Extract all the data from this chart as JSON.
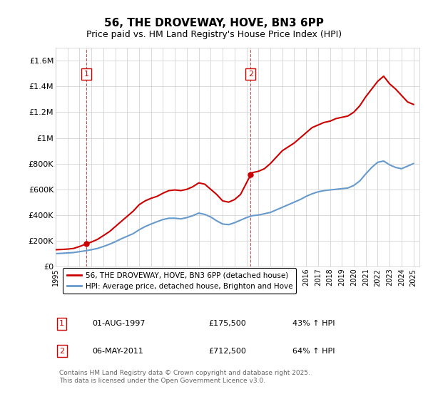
{
  "title": "56, THE DROVEWAY, HOVE, BN3 6PP",
  "subtitle": "Price paid vs. HM Land Registry's House Price Index (HPI)",
  "ylabel_ticks": [
    "£0",
    "£200K",
    "£400K",
    "£600K",
    "£800K",
    "£1M",
    "£1.2M",
    "£1.4M",
    "£1.6M"
  ],
  "ytick_values": [
    0,
    200000,
    400000,
    600000,
    800000,
    1000000,
    1200000,
    1400000,
    1600000
  ],
  "ylim": [
    0,
    1700000
  ],
  "xlim_start": 1995.0,
  "xlim_end": 2025.5,
  "marker1_x": 1997.58,
  "marker1_y": 175500,
  "marker2_x": 2011.35,
  "marker2_y": 712500,
  "marker1_label": "1",
  "marker2_label": "2",
  "legend_line1": "56, THE DROVEWAY, HOVE, BN3 6PP (detached house)",
  "legend_line2": "HPI: Average price, detached house, Brighton and Hove",
  "note1_label": "1",
  "note1_date": "01-AUG-1997",
  "note1_price": "£175,500",
  "note1_hpi": "43% ↑ HPI",
  "note2_label": "2",
  "note2_date": "06-MAY-2011",
  "note2_price": "£712,500",
  "note2_hpi": "64% ↑ HPI",
  "footer": "Contains HM Land Registry data © Crown copyright and database right 2025.\nThis data is licensed under the Open Government Licence v3.0.",
  "red_color": "#cc0000",
  "blue_color": "#6699cc",
  "dashed_red": "#cc0000",
  "grid_color": "#cccccc",
  "background_color": "#ffffff",
  "red_line_data_x": [
    1995.0,
    1995.5,
    1996.0,
    1996.5,
    1997.0,
    1997.58,
    1998.0,
    1998.5,
    1999.0,
    1999.5,
    2000.0,
    2000.5,
    2001.0,
    2001.5,
    2002.0,
    2002.5,
    2003.0,
    2003.5,
    2004.0,
    2004.5,
    2005.0,
    2005.5,
    2006.0,
    2006.5,
    2007.0,
    2007.5,
    2008.0,
    2008.5,
    2009.0,
    2009.5,
    2010.0,
    2010.5,
    2011.35,
    2011.5,
    2012.0,
    2012.5,
    2013.0,
    2013.5,
    2014.0,
    2014.5,
    2015.0,
    2015.5,
    2016.0,
    2016.5,
    2017.0,
    2017.5,
    2018.0,
    2018.5,
    2019.0,
    2019.5,
    2020.0,
    2020.5,
    2021.0,
    2021.5,
    2022.0,
    2022.5,
    2023.0,
    2023.5,
    2024.0,
    2024.5,
    2025.0
  ],
  "red_line_data_y": [
    130000,
    132000,
    135000,
    140000,
    155000,
    175500,
    190000,
    210000,
    240000,
    270000,
    310000,
    350000,
    390000,
    430000,
    480000,
    510000,
    530000,
    545000,
    570000,
    590000,
    595000,
    590000,
    600000,
    620000,
    650000,
    640000,
    600000,
    560000,
    510000,
    500000,
    520000,
    560000,
    712500,
    730000,
    740000,
    760000,
    800000,
    850000,
    900000,
    930000,
    960000,
    1000000,
    1040000,
    1080000,
    1100000,
    1120000,
    1130000,
    1150000,
    1160000,
    1170000,
    1200000,
    1250000,
    1320000,
    1380000,
    1440000,
    1480000,
    1420000,
    1380000,
    1330000,
    1280000,
    1260000
  ],
  "blue_line_data_x": [
    1995.0,
    1995.5,
    1996.0,
    1996.5,
    1997.0,
    1997.5,
    1998.0,
    1998.5,
    1999.0,
    1999.5,
    2000.0,
    2000.5,
    2001.0,
    2001.5,
    2002.0,
    2002.5,
    2003.0,
    2003.5,
    2004.0,
    2004.5,
    2005.0,
    2005.5,
    2006.0,
    2006.5,
    2007.0,
    2007.5,
    2008.0,
    2008.5,
    2009.0,
    2009.5,
    2010.0,
    2010.5,
    2011.0,
    2011.5,
    2012.0,
    2012.5,
    2013.0,
    2013.5,
    2014.0,
    2014.5,
    2015.0,
    2015.5,
    2016.0,
    2016.5,
    2017.0,
    2017.5,
    2018.0,
    2018.5,
    2019.0,
    2019.5,
    2020.0,
    2020.5,
    2021.0,
    2021.5,
    2022.0,
    2022.5,
    2023.0,
    2023.5,
    2024.0,
    2024.5,
    2025.0
  ],
  "blue_line_data_y": [
    100000,
    102000,
    105000,
    108000,
    115000,
    122000,
    130000,
    140000,
    155000,
    172000,
    192000,
    215000,
    235000,
    255000,
    285000,
    310000,
    330000,
    348000,
    365000,
    375000,
    375000,
    370000,
    380000,
    395000,
    415000,
    405000,
    385000,
    355000,
    330000,
    325000,
    340000,
    360000,
    380000,
    395000,
    400000,
    410000,
    420000,
    440000,
    460000,
    480000,
    500000,
    520000,
    545000,
    565000,
    580000,
    590000,
    595000,
    600000,
    605000,
    610000,
    630000,
    665000,
    720000,
    770000,
    810000,
    820000,
    790000,
    770000,
    760000,
    780000,
    800000
  ],
  "xtick_years": [
    1995,
    1996,
    1997,
    1998,
    1999,
    2000,
    2001,
    2002,
    2003,
    2004,
    2005,
    2006,
    2007,
    2008,
    2009,
    2010,
    2011,
    2012,
    2013,
    2014,
    2015,
    2016,
    2017,
    2018,
    2019,
    2020,
    2021,
    2022,
    2023,
    2024,
    2025
  ]
}
